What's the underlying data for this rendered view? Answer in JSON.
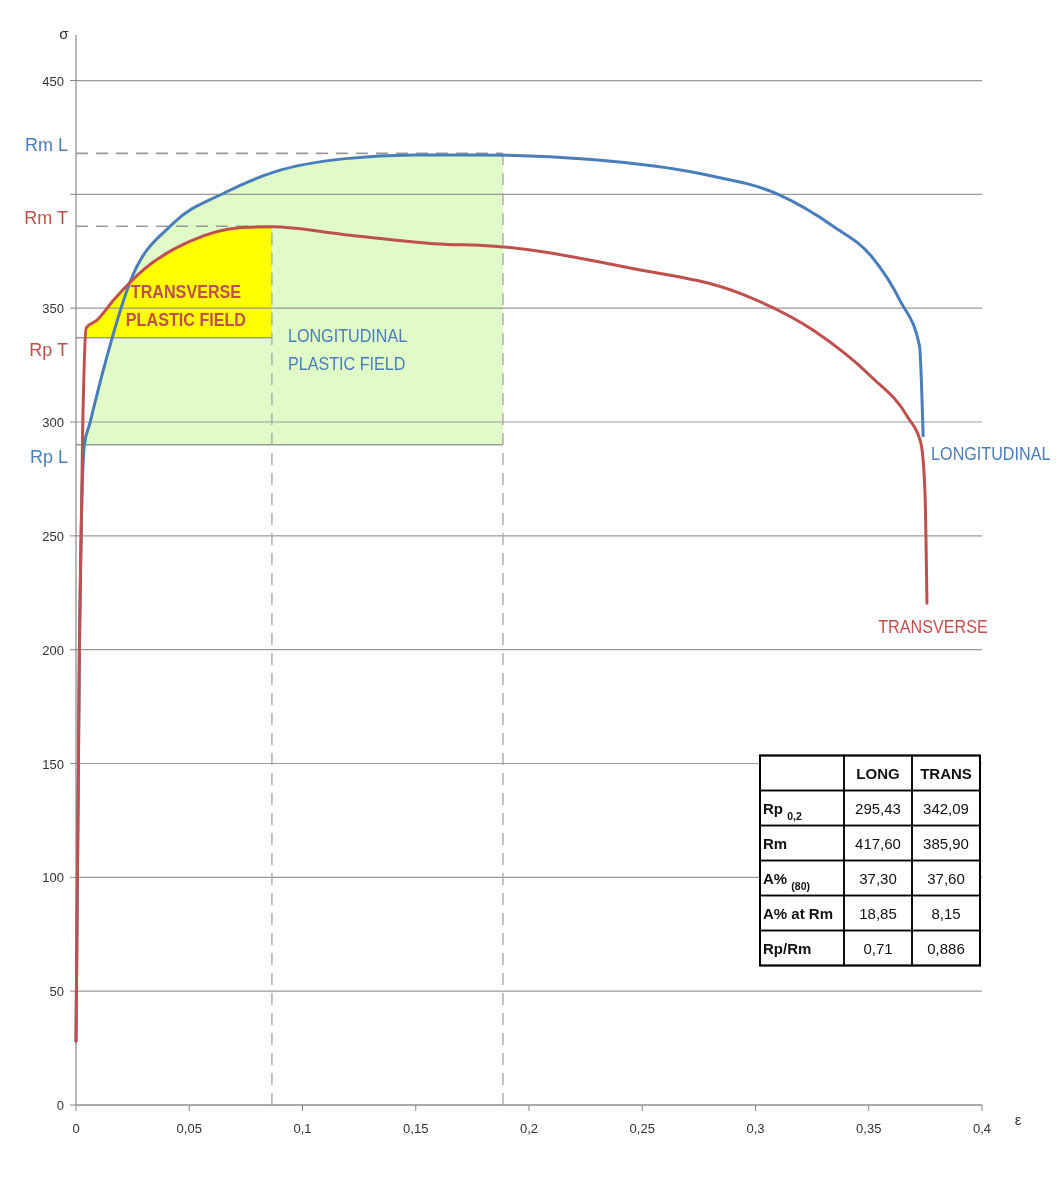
{
  "chart_data": {
    "type": "line",
    "xlabel": "ε",
    "ylabel": "σ",
    "xlim": [
      0,
      0.4
    ],
    "ylim": [
      0,
      470
    ],
    "xticks": [
      0,
      {
        "value": 0.05,
        "label": "0,05"
      },
      {
        "value": 0.1,
        "label": "0,1"
      },
      {
        "value": 0.15,
        "label": "0,15"
      },
      {
        "value": 0.2,
        "label": "0,2"
      },
      {
        "value": 0.25,
        "label": "0,25"
      },
      {
        "value": 0.3,
        "label": "0,3"
      },
      {
        "value": 0.35,
        "label": "0,35"
      },
      {
        "value": 0.4,
        "label": "0,4"
      }
    ],
    "yticks": [
      0,
      50,
      100,
      150,
      200,
      250,
      300,
      350,
      {
        "value": 400,
        "label": null
      },
      450
    ],
    "grid": "y",
    "legend": false,
    "marker": "none",
    "line_style": "solid",
    "series": [
      {
        "name": "LONGITUDINAL",
        "color": "#4a7ebb",
        "x": [
          0,
          0.0015,
          0.0037,
          0.006,
          0.0121,
          0.0243,
          0.0426,
          0.0654,
          0.088,
          0.119,
          0.149,
          0.178,
          0.2277,
          0.277,
          0.31,
          0.3346,
          0.351,
          0.364,
          0.3724,
          0.374
        ],
        "values": [
          28,
          200,
          290,
          299,
          323,
          362.6,
          387,
          400.6,
          410,
          415.7,
          417.3,
          417.3,
          415.3,
          408.8,
          400,
          385.8,
          373,
          353,
          333.5,
          294
        ]
      },
      {
        "name": "TRANSVERSE",
        "color": "#c0504d",
        "x": [
          0,
          0.0015,
          0.003,
          0.0045,
          0.009,
          0.0167,
          0.0304,
          0.0502,
          0.073,
          0.0867,
          0.1187,
          0.164,
          0.178,
          0.244,
          0.2935,
          0.326,
          0.351,
          0.3673,
          0.373,
          0.3748,
          0.3757
        ],
        "values": [
          28,
          200,
          300,
          341.4,
          344.5,
          353.7,
          367.4,
          379.3,
          385.4,
          385.8,
          382.3,
          378,
          377.7,
          367.8,
          356.4,
          340,
          320,
          302,
          290.8,
          269.7,
          220.4
        ]
      }
    ],
    "ref_lines": [
      {
        "axis": "y",
        "value": 290,
        "label": "Rp L",
        "line_style": "solid"
      },
      {
        "axis": "y",
        "value": 418,
        "label": "Rm L",
        "line_style": "dashed"
      },
      {
        "axis": "y",
        "value": 337,
        "label": "Rp T",
        "line_style": "solid"
      },
      {
        "axis": "y",
        "value": 386,
        "label": "Rm T",
        "line_style": "dashed"
      },
      {
        "axis": "x",
        "value": 0.1885,
        "line_style": "dashed"
      },
      {
        "axis": "x",
        "value": 0.0865,
        "line_style": "dashed"
      }
    ],
    "bands": [
      {
        "axis": "x",
        "from": 0,
        "to": 0.1885,
        "label": "LONGITUDINAL PLASTIC FIELD",
        "color": "#e0fbc8"
      },
      {
        "axis": "x",
        "from": 0,
        "to": 0.0865,
        "label": "TRANSVERSE PLASTIC FIELD",
        "color": "#ffff00"
      }
    ],
    "annotations": [
      "LONG",
      "TRANS",
      "Rp $_{0,2}$",
      "295,43",
      "342,09",
      "Rm",
      "417,60",
      "385,90",
      "A% $_{(80)}$",
      "37,30",
      "37,60",
      "A% at Rm",
      "18,85",
      "8,15",
      "Rp/Rm",
      "0,71",
      "0,886"
    ]
  }
}
